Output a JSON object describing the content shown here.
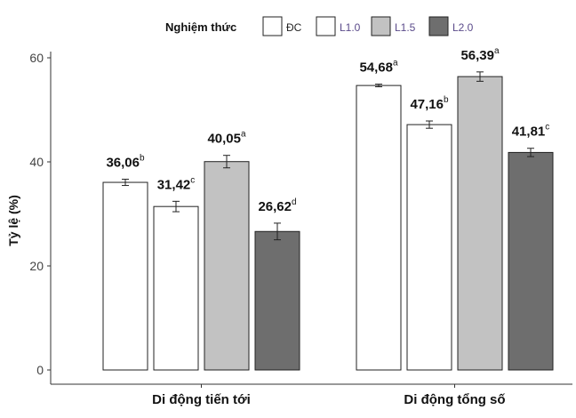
{
  "chart_data": {
    "type": "bar",
    "ylabel": "Tỷ lệ (%)",
    "xlabel": "",
    "ylim": [
      0,
      60
    ],
    "yticks": [
      0,
      20,
      40,
      60
    ],
    "grid": false,
    "legend": {
      "title": "Nghiệm thức",
      "placement": "top"
    },
    "categories": [
      "Di động tiến tới",
      "Di động tổng số"
    ],
    "series": [
      {
        "name": "ĐC",
        "color": "#ffffff",
        "values": [
          36.06,
          54.68
        ],
        "errors": [
          0.6,
          0.25
        ],
        "labels": [
          "36,06",
          "54,68"
        ],
        "letters": [
          "b",
          "a"
        ]
      },
      {
        "name": "L1.0",
        "color": "#ffffff",
        "values": [
          31.42,
          47.16
        ],
        "errors": [
          1.0,
          0.7
        ],
        "labels": [
          "31,42",
          "47,16"
        ],
        "letters": [
          "c",
          "b"
        ]
      },
      {
        "name": "L1.5",
        "color": "#c2c2c2",
        "values": [
          40.05,
          56.39
        ],
        "errors": [
          1.2,
          0.9
        ],
        "labels": [
          "40,05",
          "56,39"
        ],
        "letters": [
          "a",
          "a"
        ]
      },
      {
        "name": "L2.0",
        "color": "#6e6e6e",
        "values": [
          26.62,
          41.81
        ],
        "errors": [
          1.6,
          0.8
        ],
        "labels": [
          "26,62",
          "41,81"
        ],
        "letters": [
          "d",
          "c"
        ]
      }
    ]
  }
}
